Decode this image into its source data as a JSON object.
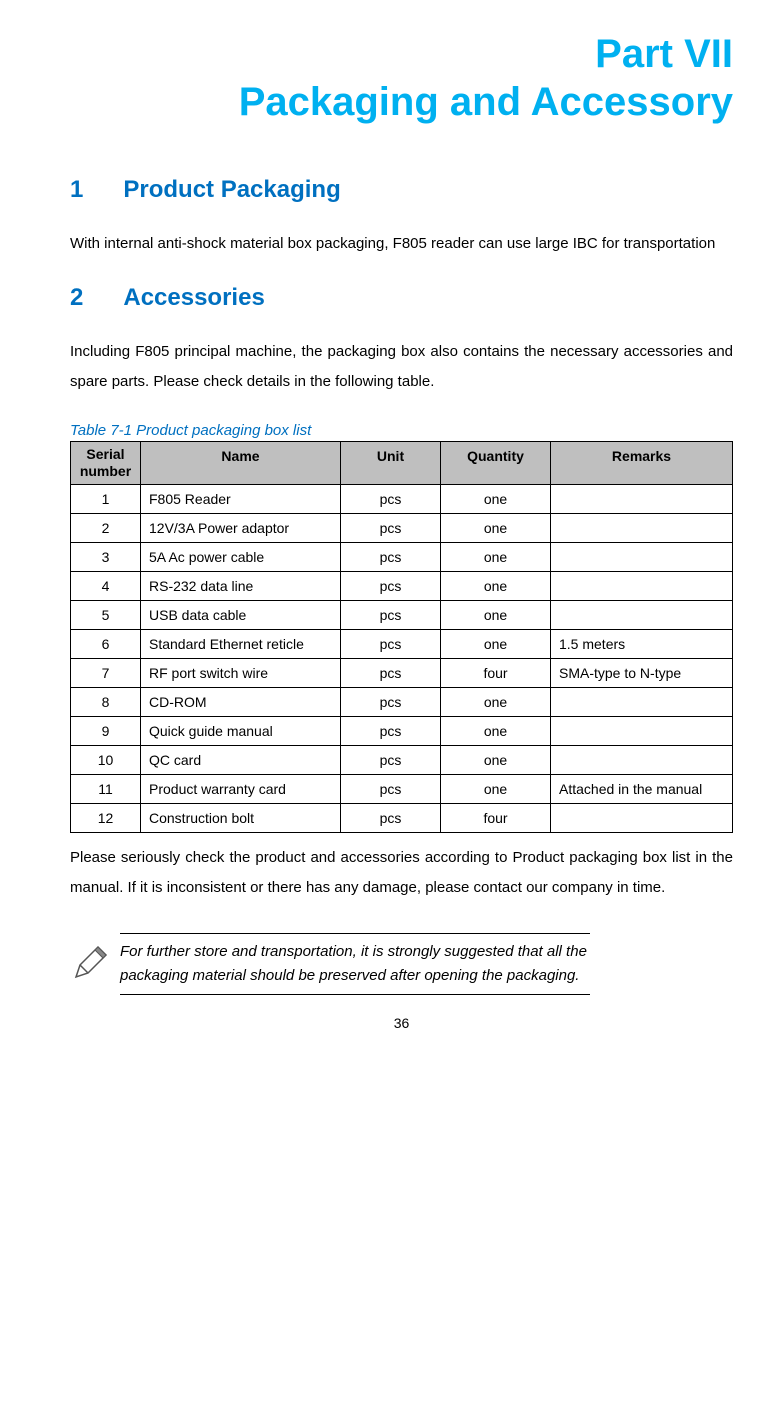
{
  "part_title_line1": "Part VII",
  "part_title_line2": "Packaging and Accessory",
  "section1": {
    "num": "1",
    "title": "Product Packaging",
    "body": "With internal anti-shock material box packaging, F805 reader can use large IBC for transportation"
  },
  "section2": {
    "num": "2",
    "title": "Accessories",
    "intro": "Including F805 principal machine, the packaging box also contains the necessary accessories and spare parts. Please check details in the following table."
  },
  "table": {
    "caption": "Table 7-1 Product packaging box list",
    "headers": {
      "serial": "Serial number",
      "name": "Name",
      "unit": "Unit",
      "quantity": "Quantity",
      "remarks": "Remarks"
    },
    "rows": [
      {
        "serial": "1",
        "name": "F805 Reader",
        "unit": "pcs",
        "quantity": "one",
        "remarks": ""
      },
      {
        "serial": "2",
        "name": "12V/3A Power adaptor",
        "unit": "pcs",
        "quantity": "one",
        "remarks": ""
      },
      {
        "serial": "3",
        "name": "5A Ac power cable",
        "unit": "pcs",
        "quantity": "one",
        "remarks": ""
      },
      {
        "serial": "4",
        "name": "RS-232 data line",
        "unit": "pcs",
        "quantity": "one",
        "remarks": ""
      },
      {
        "serial": "5",
        "name": "USB data cable",
        "unit": "pcs",
        "quantity": "one",
        "remarks": ""
      },
      {
        "serial": "6",
        "name": "Standard Ethernet reticle",
        "unit": "pcs",
        "quantity": "one",
        "remarks": "1.5 meters"
      },
      {
        "serial": "7",
        "name": "RF port switch wire",
        "unit": "pcs",
        "quantity": "four",
        "remarks": "SMA-type to N-type"
      },
      {
        "serial": "8",
        "name": "CD-ROM",
        "unit": "pcs",
        "quantity": "one",
        "remarks": ""
      },
      {
        "serial": "9",
        "name": "Quick guide manual",
        "unit": "pcs",
        "quantity": "one",
        "remarks": ""
      },
      {
        "serial": "10",
        "name": "QC card",
        "unit": "pcs",
        "quantity": "one",
        "remarks": ""
      },
      {
        "serial": "11",
        "name": "Product warranty card",
        "unit": "pcs",
        "quantity": "one",
        "remarks": "Attached in the manual"
      },
      {
        "serial": "12",
        "name": "Construction bolt",
        "unit": "pcs",
        "quantity": "four",
        "remarks": ""
      }
    ]
  },
  "post_table_text": "Please seriously check the product and accessories according to Product packaging box list in the manual. If it is inconsistent or there has any damage, please contact our company in time.",
  "note_text": "For further store and transportation, it is strongly suggested that all the packaging material should be preserved after opening the packaging.",
  "page_number": "36",
  "colors": {
    "accent_heading": "#0070c0",
    "part_title": "#00b0f0",
    "table_header_bg": "#bfbfbf",
    "text": "#000000",
    "background": "#ffffff"
  }
}
